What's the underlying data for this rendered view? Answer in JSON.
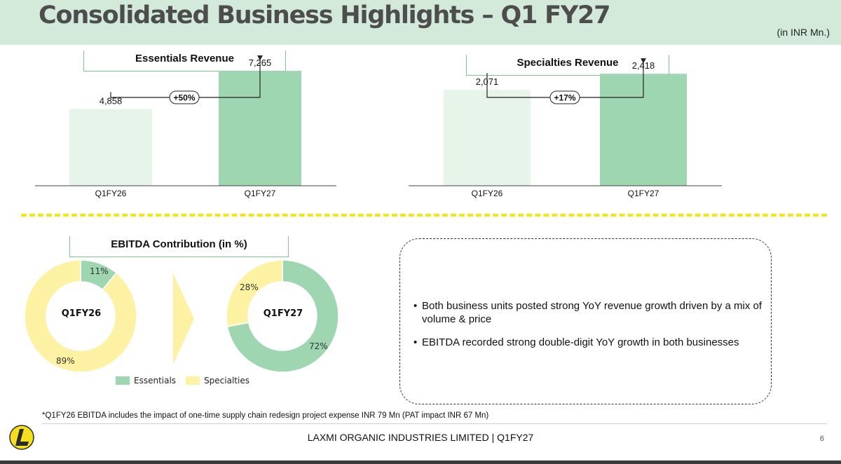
{
  "header": {
    "title": "Consolidated Business Highlights – Q1 FY27",
    "unit_note": "(in INR Mn.)"
  },
  "colors": {
    "header_bg": "#d3eadb",
    "light_green": "#e6f4ea",
    "green": "#9dd6b0",
    "yellow": "#fdf2a3",
    "divider_yellow": "#f5e60c"
  },
  "chart_data": [
    {
      "type": "bar",
      "title": "Essentials Revenue",
      "categories": [
        "Q1FY26",
        "Q1FY27"
      ],
      "values": [
        4858,
        7265
      ],
      "value_labels": [
        "4,858",
        "7,265"
      ],
      "growth_label": "+50%",
      "ymax": 8200
    },
    {
      "type": "bar",
      "title": "Specialties Revenue",
      "categories": [
        "Q1FY26",
        "Q1FY27"
      ],
      "values": [
        2071,
        2418
      ],
      "value_labels": [
        "2,071",
        "2,418"
      ],
      "growth_label": "+17%",
      "ymax": 2800
    },
    {
      "type": "pie",
      "title": "EBITDA Contribution (in %)",
      "center_label": "Q1FY26",
      "series": [
        {
          "name": "Essentials",
          "value": 11,
          "label": "11%"
        },
        {
          "name": "Specialties",
          "value": 89,
          "label": "89%"
        }
      ]
    },
    {
      "type": "pie",
      "center_label": "Q1FY27",
      "series": [
        {
          "name": "Essentials",
          "value": 72,
          "label": "72%"
        },
        {
          "name": "Specialties",
          "value": 28,
          "label": "28%"
        }
      ]
    }
  ],
  "legend": [
    {
      "name": "Essentials",
      "color": "#9dd6b0"
    },
    {
      "name": "Specialties",
      "color": "#fdf2a3"
    }
  ],
  "commentary": {
    "bullets": [
      "Both business units posted strong YoY revenue growth driven by a mix of volume & price",
      "EBITDA recorded strong double-digit YoY growth in both businesses"
    ]
  },
  "footnote": "*Q1FY26 EBITDA includes the impact of one-time supply chain redesign project expense INR 79 Mn (PAT impact INR 67 Mn)",
  "footer": {
    "company": "LAXMI ORGANIC INDUSTRIES LIMITED | Q1FY27",
    "page_number": "6",
    "logo_icon": "laxmi-logo-icon"
  }
}
